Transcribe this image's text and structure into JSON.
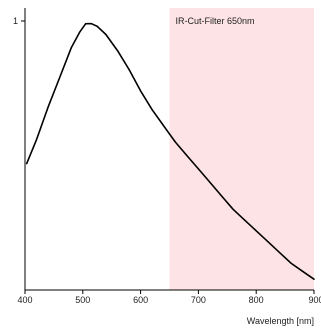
{
  "chart_data": {
    "type": "line",
    "title": "",
    "xlabel": "Wavelength [nm]",
    "ylabel": "",
    "xlim": [
      400,
      900
    ],
    "ylim": [
      0,
      1
    ],
    "x_ticks": [
      400,
      500,
      600,
      700,
      800,
      900
    ],
    "x_tick_labels": [
      "400",
      "500",
      "600",
      "700",
      "800",
      "900"
    ],
    "y_ticks": [
      1
    ],
    "y_tick_labels": [
      "1"
    ],
    "grid": false,
    "series": [
      {
        "color": "#000000",
        "x": [
          403,
          420,
          440,
          460,
          480,
          495,
          505,
          515,
          525,
          540,
          560,
          580,
          600,
          620,
          640,
          660,
          680,
          700,
          720,
          740,
          760,
          780,
          800,
          820,
          840,
          860,
          880,
          900
        ],
        "y": [
          0.47,
          0.56,
          0.68,
          0.79,
          0.9,
          0.96,
          0.99,
          0.99,
          0.98,
          0.95,
          0.89,
          0.82,
          0.74,
          0.67,
          0.61,
          0.55,
          0.5,
          0.45,
          0.4,
          0.35,
          0.3,
          0.26,
          0.22,
          0.18,
          0.14,
          0.1,
          0.07,
          0.04
        ]
      }
    ],
    "shaded_region": {
      "x_start": 650,
      "x_end": 900,
      "color": "#fde3e6",
      "label": "IR-Cut-Filter 650nm"
    }
  }
}
